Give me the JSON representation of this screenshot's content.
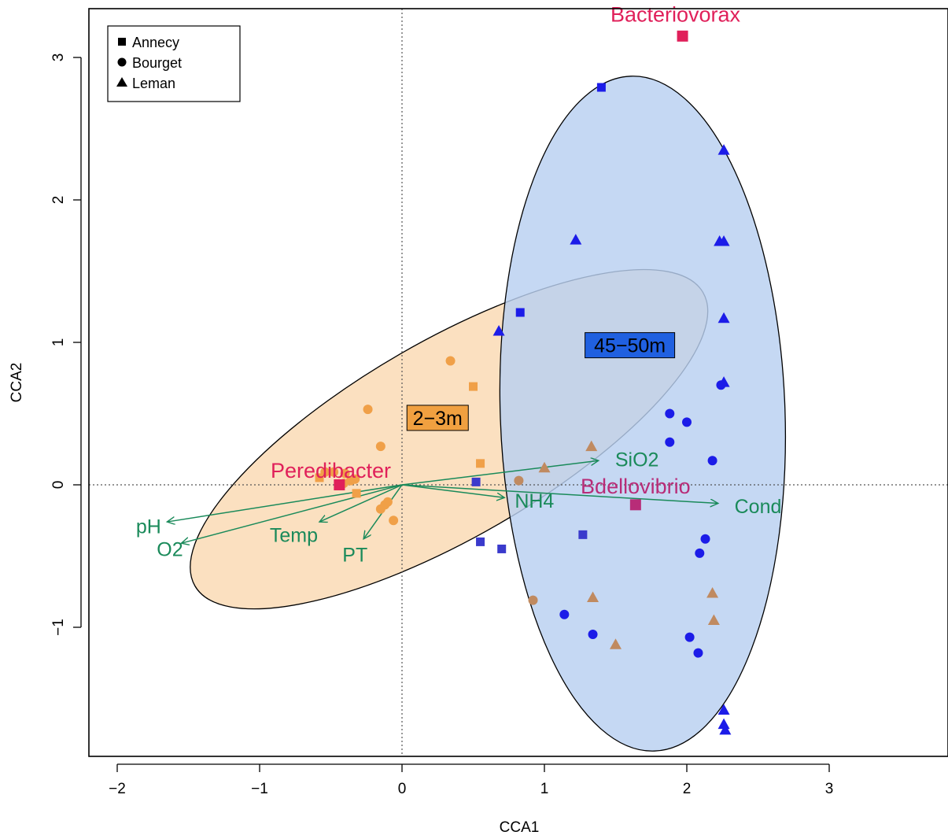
{
  "chart_data": {
    "type": "scatter",
    "xlabel": "CCA1",
    "ylabel": "CCA2",
    "xlim": [
      -2.2,
      3.85
    ],
    "ylim": [
      -1.9,
      3.3
    ],
    "xticks": [
      -2,
      -1,
      0,
      1,
      2,
      3
    ],
    "yticks": [
      -1,
      0,
      1,
      2,
      3
    ],
    "tick_labels_x": [
      "−2",
      "−1",
      "0",
      "1",
      "2",
      "3"
    ],
    "tick_labels_y": [
      "−1",
      "0",
      "1",
      "2",
      "3"
    ],
    "reference_lines": {
      "x": 0,
      "y": 0,
      "style": "dotted"
    },
    "legend": {
      "placement": "top-left",
      "entries": [
        {
          "label": "Annecy",
          "shape": "square"
        },
        {
          "label": "Bourget",
          "shape": "circle"
        },
        {
          "label": "Leman",
          "shape": "triangle"
        }
      ]
    },
    "colors": {
      "shallow": "#f0a048",
      "deep": "#1c1ce8",
      "mixed": "#5a3ab8",
      "overlap_orange": "#c08a60",
      "taxon": "#e0205a",
      "env": "#1a8a5a",
      "ellipse_shallow_fill": "#fbe0c0",
      "ellipse_deep_fill": "#b8d0f0"
    },
    "groups": [
      {
        "label": "2−3m",
        "label_at": [
          0.25,
          0.47
        ],
        "box_fill": "#f0a040",
        "ellipse": {
          "cx": 0.33,
          "cy": 0.32,
          "rx": 2.06,
          "ry": 0.69,
          "angle_deg": -30
        }
      },
      {
        "label": "45−50m",
        "label_at": [
          1.6,
          0.98
        ],
        "box_fill": "#2060e0",
        "ellipse": {
          "cx": 1.69,
          "cy": 0.5,
          "rx": 1.0,
          "ry": 2.37,
          "angle_deg": -2
        }
      }
    ],
    "environmental_vectors": [
      {
        "name": "SiO2",
        "x": 1.38,
        "y": 0.17,
        "label_at": [
          1.65,
          0.18
        ]
      },
      {
        "name": "NH4",
        "x": 0.72,
        "y": -0.09,
        "label_at": [
          0.93,
          -0.11
        ]
      },
      {
        "name": "Cond",
        "x": 2.22,
        "y": -0.13,
        "label_at": [
          2.5,
          -0.15
        ]
      },
      {
        "name": "pH",
        "x": -1.65,
        "y": -0.26,
        "label_at": [
          -1.78,
          -0.29
        ]
      },
      {
        "name": "O2",
        "x": -1.55,
        "y": -0.41,
        "label_at": [
          -1.63,
          -0.45
        ]
      },
      {
        "name": "Temp",
        "x": -0.58,
        "y": -0.26,
        "label_at": [
          -0.76,
          -0.35
        ]
      },
      {
        "name": "PT",
        "x": -0.27,
        "y": -0.38,
        "label_at": [
          -0.33,
          -0.49
        ]
      }
    ],
    "taxa": [
      {
        "name": "Bacteriovorax",
        "x": 1.97,
        "y": 3.15,
        "label_at": [
          1.92,
          3.3
        ],
        "color": "#e0205a"
      },
      {
        "name": "Peredibacter",
        "x": -0.44,
        "y": 0.0,
        "label_at": [
          -0.5,
          0.1
        ],
        "color": "#e0205a"
      },
      {
        "name": "Bdellovibrio",
        "x": 1.64,
        "y": -0.14,
        "label_at": [
          1.64,
          -0.01
        ],
        "color": "#b82c78"
      }
    ],
    "series": [
      {
        "shape": "square",
        "color": "#f0a048",
        "points": [
          [
            0.5,
            0.69
          ],
          [
            0.55,
            0.15
          ],
          [
            -0.32,
            -0.06
          ],
          [
            -0.58,
            0.05
          ]
        ]
      },
      {
        "shape": "circle",
        "color": "#f0a048",
        "points": [
          [
            0.34,
            0.87
          ],
          [
            -0.24,
            0.53
          ],
          [
            -0.15,
            0.27
          ],
          [
            -0.54,
            0.09
          ],
          [
            -0.48,
            0.09
          ],
          [
            -0.4,
            0.08
          ],
          [
            -0.36,
            0.03
          ],
          [
            -0.33,
            0.04
          ],
          [
            -0.41,
            0.01
          ],
          [
            -0.12,
            -0.14
          ],
          [
            -0.1,
            -0.12
          ],
          [
            -0.15,
            -0.17
          ],
          [
            -0.06,
            -0.25
          ]
        ]
      },
      {
        "shape": "circle",
        "color": "#c08a60",
        "points": [
          [
            0.82,
            0.03
          ],
          [
            0.92,
            -0.81
          ]
        ]
      },
      {
        "shape": "triangle",
        "color": "#c08a60",
        "points": [
          [
            1.33,
            0.27
          ],
          [
            1.0,
            0.12
          ],
          [
            1.34,
            -0.79
          ],
          [
            1.5,
            -1.12
          ],
          [
            2.18,
            -0.76
          ],
          [
            2.19,
            -0.95
          ]
        ]
      },
      {
        "shape": "square",
        "color": "#1c1ce8",
        "points": [
          [
            1.4,
            2.79
          ],
          [
            0.83,
            1.21
          ]
        ]
      },
      {
        "shape": "square",
        "color": "#3a3acc",
        "points": [
          [
            0.52,
            0.02
          ],
          [
            0.55,
            -0.4
          ],
          [
            0.7,
            -0.45
          ],
          [
            1.27,
            -0.35
          ]
        ]
      },
      {
        "shape": "triangle",
        "color": "#1c1ce8",
        "points": [
          [
            2.26,
            2.35
          ],
          [
            1.22,
            1.72
          ],
          [
            2.23,
            1.71
          ],
          [
            2.26,
            1.71
          ],
          [
            2.26,
            1.17
          ],
          [
            0.68,
            1.08
          ],
          [
            2.26,
            0.72
          ],
          [
            2.26,
            -1.58
          ],
          [
            2.26,
            -1.68
          ],
          [
            2.27,
            -1.72
          ]
        ]
      },
      {
        "shape": "circle",
        "color": "#1c1ce8",
        "points": [
          [
            2.24,
            0.7
          ],
          [
            1.88,
            0.5
          ],
          [
            2.0,
            0.44
          ],
          [
            1.88,
            0.3
          ],
          [
            2.18,
            0.17
          ],
          [
            2.13,
            -0.38
          ],
          [
            2.09,
            -0.48
          ],
          [
            1.14,
            -0.91
          ],
          [
            1.34,
            -1.05
          ],
          [
            2.02,
            -1.07
          ],
          [
            2.08,
            -1.18
          ]
        ]
      }
    ]
  }
}
